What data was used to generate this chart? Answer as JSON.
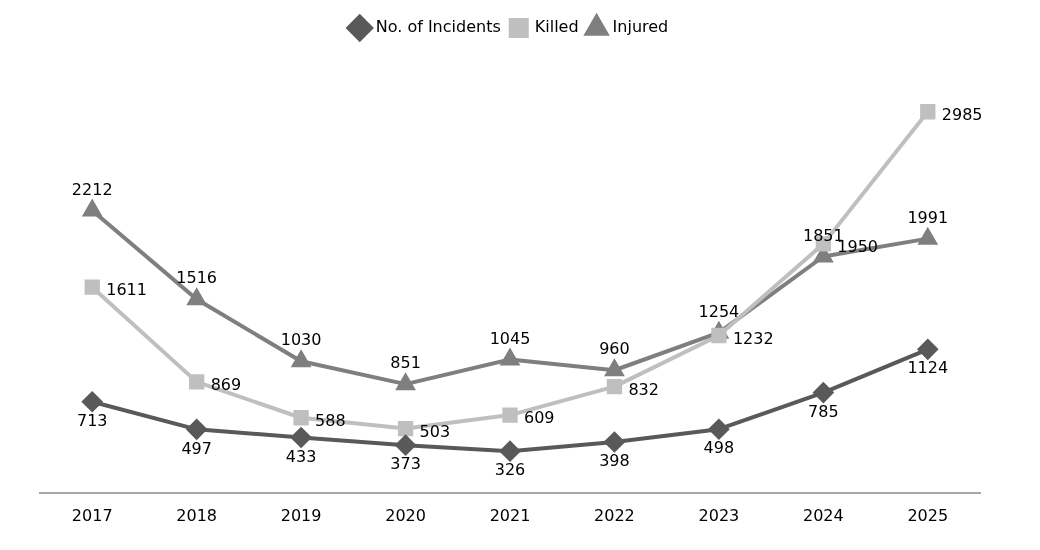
{
  "chart_data": {
    "type": "line",
    "categories": [
      "2017",
      "2018",
      "2019",
      "2020",
      "2021",
      "2022",
      "2023",
      "2024",
      "2025"
    ],
    "series": [
      {
        "name": "No. of Incidents",
        "color": "#595959",
        "marker": "diamond",
        "values": [
          713,
          497,
          433,
          373,
          326,
          398,
          498,
          785,
          1124
        ]
      },
      {
        "name": "Killed",
        "color": "#bfbfbf",
        "marker": "square",
        "values": [
          1611,
          869,
          588,
          503,
          609,
          832,
          1232,
          1950,
          2985
        ]
      },
      {
        "name": "Injured",
        "color": "#7f7f7f",
        "marker": "triangle",
        "values": [
          2212,
          1516,
          1030,
          851,
          1045,
          960,
          1254,
          1851,
          1991
        ]
      }
    ],
    "data_labels": true,
    "legend": "top",
    "grid": false
  }
}
